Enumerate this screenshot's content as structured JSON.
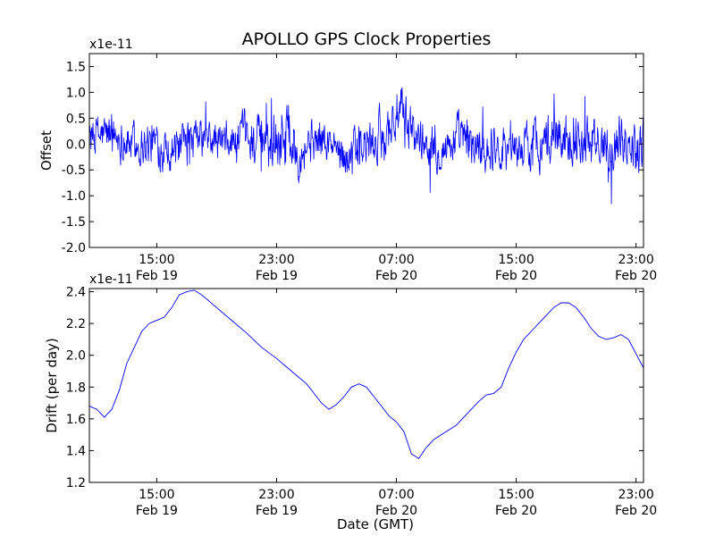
{
  "title": "APOLLO GPS Clock Properties",
  "colors": {
    "line": "#0000ff",
    "axes": "#000000",
    "background": "#ffffff"
  },
  "chart_data": [
    {
      "type": "line",
      "title": "APOLLO GPS Clock Properties",
      "ylabel": "Offset",
      "xlabel": "",
      "offset_text": "x1e-11",
      "x_range_hours": [
        10.5,
        47.5
      ],
      "ylim": [
        -2.0,
        1.75
      ],
      "yticks": [
        {
          "value": 1.5,
          "label": "1.5"
        },
        {
          "value": 1.0,
          "label": "1.0"
        },
        {
          "value": 0.5,
          "label": "0.5"
        },
        {
          "value": 0.0,
          "label": "0.0"
        },
        {
          "value": -0.5,
          "label": "-0.5"
        },
        {
          "value": -1.0,
          "label": "-1.0"
        },
        {
          "value": -1.5,
          "label": "-1.5"
        },
        {
          "value": -2.0,
          "label": "-2.0"
        }
      ],
      "xticks": [
        {
          "value": 15,
          "time": "15:00",
          "date": "Feb 19"
        },
        {
          "value": 23,
          "time": "23:00",
          "date": "Feb 19"
        },
        {
          "value": 31,
          "time": "07:00",
          "date": "Feb 20"
        },
        {
          "value": 39,
          "time": "15:00",
          "date": "Feb 20"
        },
        {
          "value": 47,
          "time": "23:00",
          "date": "Feb 20"
        }
      ],
      "series": [
        {
          "noise": true,
          "x": [
            10.5,
            12.0,
            13.5,
            15.0,
            16.5,
            18.0,
            19.5,
            21.0,
            22.5,
            23.5,
            24.5,
            25.5,
            26.5,
            27.5,
            28.5,
            29.5,
            30.5,
            31.0,
            32.0,
            33.0,
            34.0,
            35.0,
            36.0,
            37.0,
            38.0,
            39.0,
            40.0,
            41.0,
            42.0,
            43.0,
            44.0,
            45.0,
            46.0,
            47.0,
            47.5
          ],
          "y": [
            0.1,
            0.2,
            0.0,
            0.0,
            -0.1,
            0.1,
            0.0,
            0.1,
            0.0,
            0.3,
            -0.1,
            0.1,
            0.0,
            -0.2,
            -0.1,
            0.0,
            0.3,
            0.6,
            0.3,
            0.0,
            -0.1,
            0.1,
            0.0,
            -0.1,
            0.0,
            -0.1,
            0.0,
            0.1,
            0.2,
            0.1,
            0.0,
            0.0,
            0.1,
            0.0,
            0.1
          ],
          "amplitude": [
            0.3,
            0.35,
            0.3,
            0.35,
            0.3,
            0.3,
            0.3,
            0.35,
            0.4,
            0.6,
            0.35,
            0.35,
            0.3,
            0.3,
            0.35,
            0.35,
            0.4,
            0.45,
            0.35,
            0.3,
            0.3,
            0.35,
            0.35,
            0.35,
            0.35,
            0.3,
            0.35,
            0.4,
            0.4,
            0.35,
            0.35,
            0.35,
            0.35,
            0.4,
            0.5
          ]
        }
      ]
    },
    {
      "type": "line",
      "ylabel": "Drift (per day)",
      "xlabel": "Date (GMT)",
      "offset_text": "x1e-11",
      "x_range_hours": [
        10.5,
        47.5
      ],
      "ylim": [
        1.2,
        2.42
      ],
      "yticks": [
        {
          "value": 2.4,
          "label": "2.4"
        },
        {
          "value": 2.2,
          "label": "2.2"
        },
        {
          "value": 2.0,
          "label": "2.0"
        },
        {
          "value": 1.8,
          "label": "1.8"
        },
        {
          "value": 1.6,
          "label": "1.6"
        },
        {
          "value": 1.4,
          "label": "1.4"
        },
        {
          "value": 1.2,
          "label": "1.2"
        }
      ],
      "xticks": [
        {
          "value": 15,
          "time": "15:00",
          "date": "Feb 19"
        },
        {
          "value": 23,
          "time": "23:00",
          "date": "Feb 19"
        },
        {
          "value": 31,
          "time": "07:00",
          "date": "Feb 20"
        },
        {
          "value": 39,
          "time": "15:00",
          "date": "Feb 20"
        },
        {
          "value": 47,
          "time": "23:00",
          "date": "Feb 20"
        }
      ],
      "series": [
        {
          "x": [
            10.5,
            11.0,
            11.5,
            12.0,
            12.5,
            13.0,
            13.5,
            14.0,
            14.5,
            15.0,
            15.5,
            16.0,
            16.5,
            17.0,
            17.5,
            18.0,
            18.5,
            19.0,
            19.5,
            20.0,
            21.0,
            22.0,
            23.0,
            23.5,
            24.0,
            24.5,
            25.0,
            25.5,
            26.0,
            26.5,
            27.0,
            27.5,
            28.0,
            28.5,
            29.0,
            29.5,
            30.0,
            30.5,
            31.0,
            31.5,
            32.0,
            32.5,
            33.0,
            33.5,
            34.0,
            34.5,
            35.0,
            35.5,
            36.0,
            36.5,
            37.0,
            37.5,
            38.0,
            38.5,
            39.0,
            39.5,
            40.0,
            40.5,
            41.0,
            41.5,
            42.0,
            42.5,
            43.0,
            43.5,
            44.0,
            44.5,
            45.0,
            45.5,
            46.0,
            46.5,
            47.0,
            47.5
          ],
          "y": [
            1.68,
            1.66,
            1.61,
            1.66,
            1.78,
            1.95,
            2.05,
            2.15,
            2.2,
            2.22,
            2.24,
            2.3,
            2.38,
            2.4,
            2.41,
            2.38,
            2.34,
            2.3,
            2.26,
            2.22,
            2.14,
            2.05,
            1.98,
            1.94,
            1.9,
            1.86,
            1.82,
            1.76,
            1.7,
            1.66,
            1.69,
            1.74,
            1.8,
            1.82,
            1.8,
            1.74,
            1.68,
            1.62,
            1.58,
            1.52,
            1.38,
            1.35,
            1.42,
            1.47,
            1.5,
            1.53,
            1.56,
            1.61,
            1.66,
            1.71,
            1.75,
            1.76,
            1.8,
            1.92,
            2.02,
            2.1,
            2.15,
            2.2,
            2.25,
            2.3,
            2.33,
            2.33,
            2.3,
            2.24,
            2.17,
            2.12,
            2.1,
            2.11,
            2.13,
            2.1,
            2.01,
            1.92
          ]
        }
      ]
    }
  ]
}
